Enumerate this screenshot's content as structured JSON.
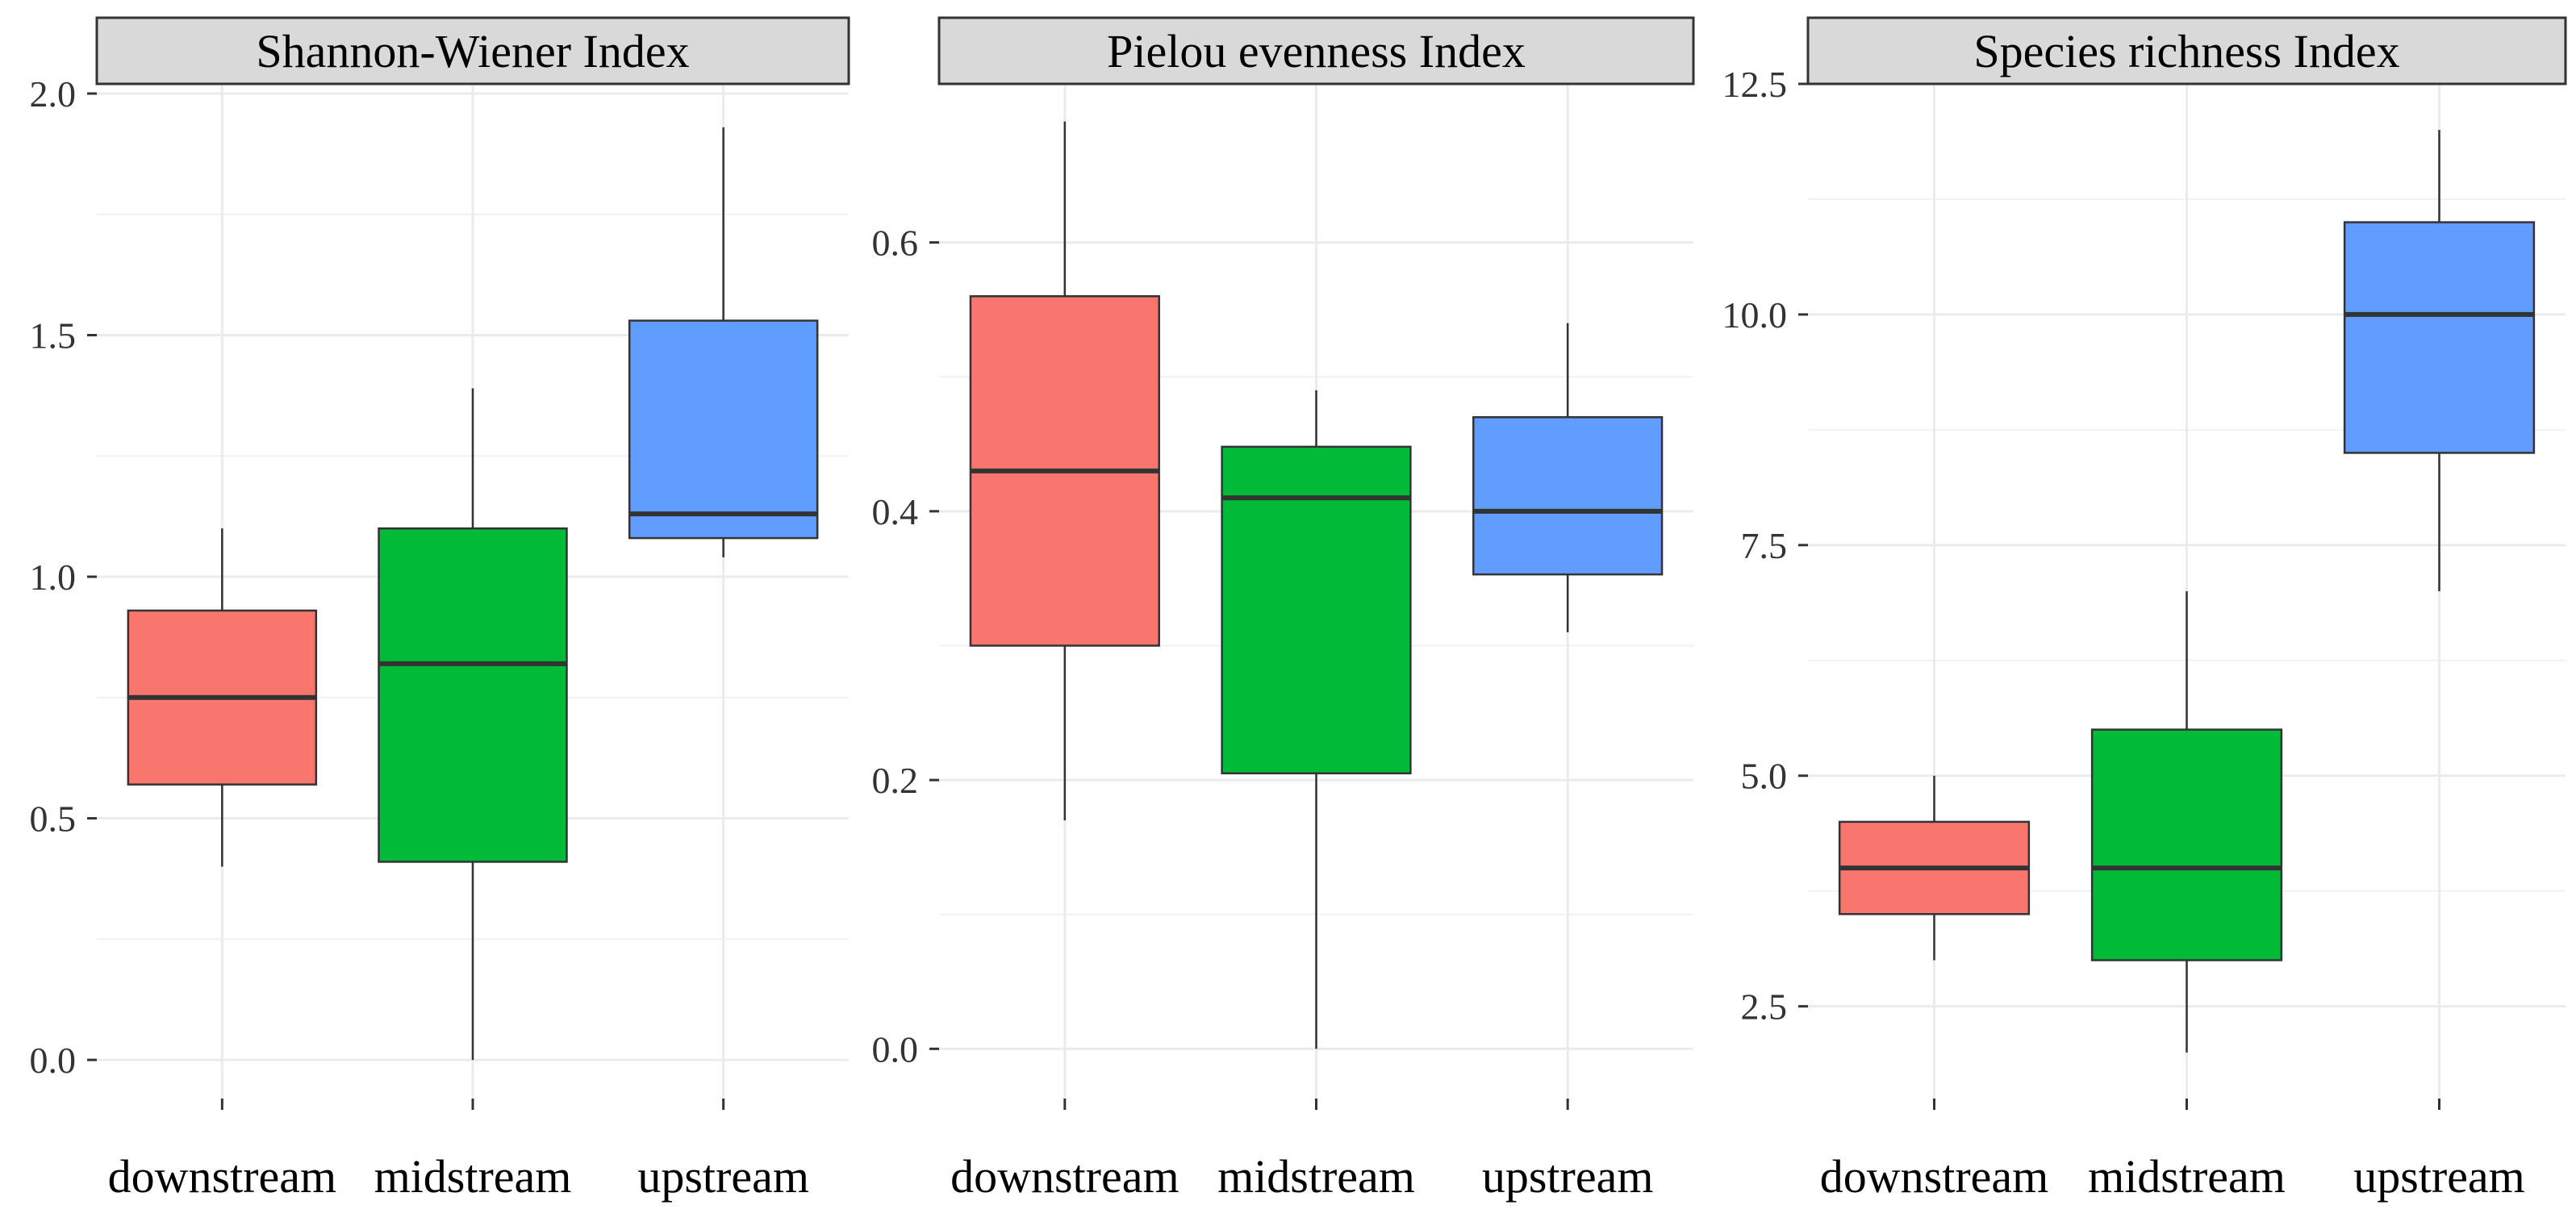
{
  "chart_data": [
    {
      "type": "boxplot",
      "title": "Shannon-Wiener Index",
      "categories": [
        "downstream",
        "midstream",
        "upstream"
      ],
      "colors": [
        "#F8766D",
        "#00BA38",
        "#619CFF"
      ],
      "ylim": [
        -0.08,
        2.02
      ],
      "yticks": [
        0.0,
        0.5,
        1.0,
        1.5,
        2.0
      ],
      "ytick_labels": [
        "0.0",
        "0.5",
        "1.0",
        "1.5",
        "2.0"
      ],
      "boxes": [
        {
          "whisker_low": 0.4,
          "q1": 0.57,
          "median": 0.75,
          "q3": 0.93,
          "whisker_high": 1.1
        },
        {
          "whisker_low": 0.0,
          "q1": 0.41,
          "median": 0.82,
          "q3": 1.1,
          "whisker_high": 1.39
        },
        {
          "whisker_low": 1.04,
          "q1": 1.08,
          "median": 1.13,
          "q3": 1.53,
          "whisker_high": 1.93
        }
      ]
    },
    {
      "type": "boxplot",
      "title": "Pielou evenness Index",
      "categories": [
        "downstream",
        "midstream",
        "upstream"
      ],
      "colors": [
        "#F8766D",
        "#00BA38",
        "#619CFF"
      ],
      "ylim": [
        -0.037,
        0.718
      ],
      "yticks": [
        0.0,
        0.2,
        0.4,
        0.6
      ],
      "ytick_labels": [
        "0.0",
        "0.2",
        "0.4",
        "0.6"
      ],
      "boxes": [
        {
          "whisker_low": 0.17,
          "q1": 0.3,
          "median": 0.43,
          "q3": 0.56,
          "whisker_high": 0.69
        },
        {
          "whisker_low": 0.0,
          "q1": 0.205,
          "median": 0.41,
          "q3": 0.448,
          "whisker_high": 0.49
        },
        {
          "whisker_low": 0.31,
          "q1": 0.353,
          "median": 0.4,
          "q3": 0.47,
          "whisker_high": 0.54
        }
      ]
    },
    {
      "type": "boxplot",
      "title": "Species richness Index",
      "categories": [
        "downstream",
        "midstream",
        "upstream"
      ],
      "colors": [
        "#F8766D",
        "#00BA38",
        "#619CFF"
      ],
      "ylim": [
        1.5,
        12.5
      ],
      "yticks": [
        2.5,
        5.0,
        7.5,
        10.0,
        12.5
      ],
      "ytick_labels": [
        "2.5",
        "5.0",
        "7.5",
        "10.0",
        "12.5"
      ],
      "boxes": [
        {
          "whisker_low": 3.0,
          "q1": 3.5,
          "median": 4.0,
          "q3": 4.5,
          "whisker_high": 5.0
        },
        {
          "whisker_low": 2.0,
          "q1": 3.0,
          "median": 4.0,
          "q3": 5.5,
          "whisker_high": 7.0
        },
        {
          "whisker_low": 7.0,
          "q1": 8.5,
          "median": 10.0,
          "q3": 11.0,
          "whisker_high": 12.0
        }
      ]
    }
  ]
}
